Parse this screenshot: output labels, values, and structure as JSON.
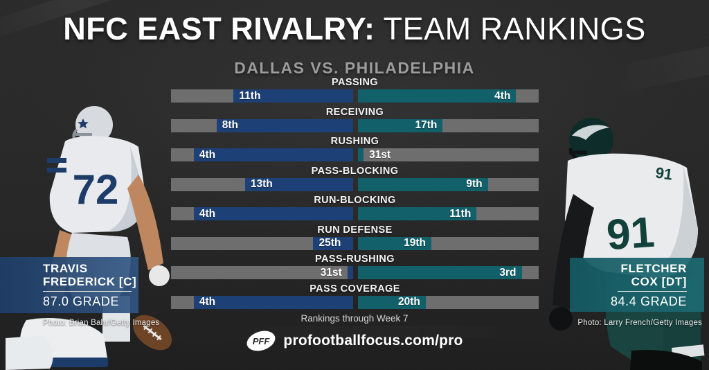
{
  "title": {
    "bold": "NFC EAST RIVALRY:",
    "regular": "TEAM RANKINGS"
  },
  "subtitle": "DALLAS VS. PHILADELPHIA",
  "chart_data": {
    "type": "bar",
    "title": "NFC EAST RIVALRY: TEAM RANKINGS",
    "subtitle": "DALLAS VS. PHILADELPHIA",
    "categories": [
      "PASSING",
      "RECEIVING",
      "RUSHING",
      "PASS-BLOCKING",
      "RUN-BLOCKING",
      "RUN DEFENSE",
      "PASS-RUSHING",
      "PASS COVERAGE"
    ],
    "series": [
      {
        "name": "Dallas",
        "color": "#1d4076",
        "ranks": [
          11,
          8,
          4,
          13,
          4,
          25,
          31,
          4
        ],
        "labels": [
          "11th",
          "8th",
          "4th",
          "13th",
          "4th",
          "25th",
          "31st",
          "4th"
        ]
      },
      {
        "name": "Philadelphia",
        "color": "#11606a",
        "ranks": [
          4,
          17,
          31,
          9,
          11,
          19,
          3,
          20
        ],
        "labels": [
          "4th",
          "17th",
          "31st",
          "9th",
          "11th",
          "19th",
          "3rd",
          "20th"
        ]
      }
    ],
    "scale": {
      "best_rank": 1,
      "worst_rank": 32,
      "note": "bar fill length = (32 - rank) / 32 of track, Dallas grows leftward from center, Philadelphia grows rightward"
    },
    "track_color": "#6e6e6e",
    "footnote": "Rankings through Week 7",
    "legend_position": "none",
    "grid": false
  },
  "players": {
    "left": {
      "name_line1": "TRAVIS",
      "name_line2": "FREDERICK [C]",
      "grade": "87.0 GRADE",
      "credit": "Photo: Brian Bahr/Getty Images",
      "jersey_number": "72",
      "band_color": "#2d4e74"
    },
    "right": {
      "name_line1": "FLETCHER",
      "name_line2": "COX [DT]",
      "grade": "84.4 GRADE",
      "credit": "Photo: Larry French/Getty Images",
      "jersey_number": "91",
      "band_color": "#1d6b74"
    }
  },
  "footer": {
    "note": "Rankings through Week 7",
    "logo_text": "PFF",
    "url": "profootballfocus.com/pro"
  }
}
